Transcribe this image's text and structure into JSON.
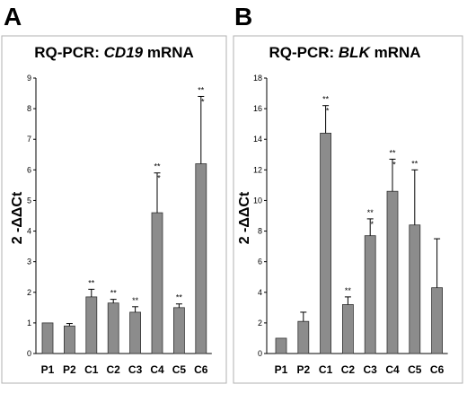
{
  "chart_data": [
    {
      "type": "bar",
      "panel_label": "A",
      "title_prefix": "RQ-PCR: ",
      "title_gene": "CD19",
      "title_suffix": " mRNA",
      "ylabel": "2 -ΔΔCt",
      "xlabel": "",
      "categories": [
        "P1",
        "P2",
        "C1",
        "C2",
        "C3",
        "C4",
        "C5",
        "C6"
      ],
      "values": [
        1.0,
        0.9,
        1.85,
        1.65,
        1.35,
        4.6,
        1.5,
        6.2
      ],
      "errors": [
        0.0,
        0.08,
        0.25,
        0.12,
        0.18,
        1.3,
        0.12,
        2.2
      ],
      "significance": [
        [],
        [],
        [
          "**"
        ],
        [
          "**"
        ],
        [
          "**"
        ],
        [
          "**",
          "*"
        ],
        [
          "**"
        ],
        [
          "**",
          "*"
        ]
      ],
      "ylim": [
        0,
        9
      ],
      "yticks": [
        "0",
        "1",
        "2",
        "3",
        "4",
        "5",
        "6",
        "7",
        "8",
        "9"
      ],
      "grid": false,
      "bar_color": "#8c8c8c"
    },
    {
      "type": "bar",
      "panel_label": "B",
      "title_prefix": "RQ-PCR: ",
      "title_gene": "BLK",
      "title_suffix": " mRNA",
      "ylabel": "2 -ΔΔCt",
      "xlabel": "",
      "categories": [
        "P1",
        "P2",
        "C1",
        "C2",
        "C3",
        "C4",
        "C5",
        "C6"
      ],
      "values": [
        1.0,
        2.1,
        14.4,
        3.2,
        7.7,
        10.6,
        8.4,
        4.3
      ],
      "errors": [
        0.0,
        0.6,
        1.8,
        0.5,
        1.1,
        2.1,
        3.6,
        3.2
      ],
      "significance": [
        [],
        [],
        [
          "**",
          "*"
        ],
        [
          "**"
        ],
        [
          "**",
          "*"
        ],
        [
          "**",
          "*"
        ],
        [
          "**"
        ],
        []
      ],
      "ylim": [
        0,
        18
      ],
      "yticks": [
        "0",
        "2",
        "4",
        "6",
        "8",
        "10",
        "12",
        "14",
        "16",
        "18"
      ],
      "grid": false,
      "bar_color": "#8c8c8c"
    }
  ]
}
